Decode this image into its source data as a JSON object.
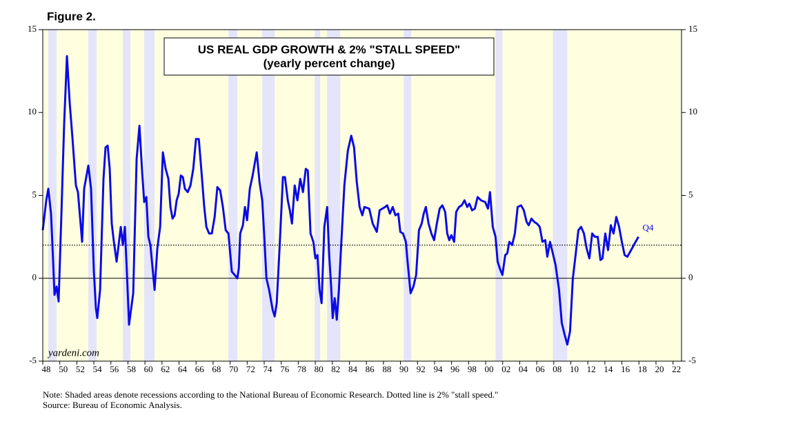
{
  "chart_data": {
    "type": "line",
    "figure_label": "Figure 2.",
    "title": "US REAL GDP GROWTH & 2% \"STALL SPEED\"",
    "subtitle": "(yearly percent change)",
    "watermark": "yardeni.com",
    "note": "Note: Shaded areas denote recessions according to the National Bureau of Economic Research. Dotted line is 2% \"stall speed.\"",
    "source": "Source: Bureau of Economic Analysis.",
    "annotation": "Q4",
    "color": "#0a0ae6",
    "background_color": "#ffffe0",
    "recession_color": "#e4e4fa",
    "stall_speed": 2,
    "zero_line": true,
    "xlim": [
      1948,
      2023
    ],
    "ylim": [
      -5,
      15
    ],
    "yticks": [
      -5,
      0,
      5,
      10,
      15
    ],
    "xticks": [
      {
        "value": 1948,
        "label": "48"
      },
      {
        "value": 1950,
        "label": "50"
      },
      {
        "value": 1952,
        "label": "52"
      },
      {
        "value": 1954,
        "label": "54"
      },
      {
        "value": 1956,
        "label": "56"
      },
      {
        "value": 1958,
        "label": "58"
      },
      {
        "value": 1960,
        "label": "60"
      },
      {
        "value": 1962,
        "label": "62"
      },
      {
        "value": 1964,
        "label": "64"
      },
      {
        "value": 1966,
        "label": "66"
      },
      {
        "value": 1968,
        "label": "68"
      },
      {
        "value": 1970,
        "label": "70"
      },
      {
        "value": 1972,
        "label": "72"
      },
      {
        "value": 1974,
        "label": "74"
      },
      {
        "value": 1976,
        "label": "76"
      },
      {
        "value": 1978,
        "label": "78"
      },
      {
        "value": 1980,
        "label": "80"
      },
      {
        "value": 1982,
        "label": "82"
      },
      {
        "value": 1984,
        "label": "84"
      },
      {
        "value": 1986,
        "label": "86"
      },
      {
        "value": 1988,
        "label": "88"
      },
      {
        "value": 1990,
        "label": "90"
      },
      {
        "value": 1992,
        "label": "92"
      },
      {
        "value": 1994,
        "label": "94"
      },
      {
        "value": 1996,
        "label": "96"
      },
      {
        "value": 1998,
        "label": "98"
      },
      {
        "value": 2000,
        "label": "00"
      },
      {
        "value": 2002,
        "label": "02"
      },
      {
        "value": 2004,
        "label": "04"
      },
      {
        "value": 2006,
        "label": "06"
      },
      {
        "value": 2008,
        "label": "08"
      },
      {
        "value": 2010,
        "label": "10"
      },
      {
        "value": 2012,
        "label": "12"
      },
      {
        "value": 2014,
        "label": "14"
      },
      {
        "value": 2016,
        "label": "16"
      },
      {
        "value": 2018,
        "label": "18"
      },
      {
        "value": 2020,
        "label": "20"
      },
      {
        "value": 2022,
        "label": "22"
      }
    ],
    "recessions": [
      [
        1948.65,
        1949.62
      ],
      [
        1953.35,
        1954.32
      ],
      [
        1957.4,
        1958.29
      ],
      [
        1959.91,
        1961.13
      ],
      [
        1969.8,
        1970.85
      ],
      [
        1973.77,
        1975.23
      ],
      [
        1979.93,
        1980.58
      ],
      [
        1981.39,
        1982.93
      ],
      [
        1990.38,
        1991.27
      ],
      [
        2001.16,
        2001.97
      ],
      [
        2007.89,
        2009.59
      ]
    ],
    "x": [
      1948.0,
      1948.41,
      1948.65,
      1948.97,
      1949.22,
      1949.38,
      1949.62,
      1949.86,
      1950.19,
      1950.51,
      1950.84,
      1951.16,
      1951.48,
      1951.89,
      1952.13,
      1952.62,
      1952.86,
      1953.35,
      1953.67,
      1954.0,
      1954.24,
      1954.4,
      1954.73,
      1955.13,
      1955.37,
      1955.62,
      1955.86,
      1956.1,
      1956.35,
      1956.67,
      1957.16,
      1957.4,
      1957.64,
      1957.89,
      1958.13,
      1958.62,
      1959.02,
      1959.35,
      1959.67,
      1959.91,
      1960.16,
      1960.4,
      1960.64,
      1961.13,
      1961.45,
      1961.78,
      1962.1,
      1962.43,
      1962.75,
      1962.99,
      1963.24,
      1963.48,
      1963.72,
      1963.96,
      1964.21,
      1964.45,
      1964.69,
      1965.02,
      1965.34,
      1965.67,
      1965.99,
      1966.32,
      1966.64,
      1966.96,
      1967.21,
      1967.53,
      1967.85,
      1968.18,
      1968.5,
      1968.83,
      1969.15,
      1969.48,
      1969.8,
      1970.2,
      1970.53,
      1970.85,
      1971.02,
      1971.18,
      1971.5,
      1971.74,
      1971.99,
      1972.31,
      1972.64,
      1973.12,
      1973.45,
      1973.77,
      1974.01,
      1974.26,
      1974.58,
      1974.99,
      1975.23,
      1975.47,
      1975.8,
      1976.2,
      1976.44,
      1976.77,
      1977.01,
      1977.26,
      1977.58,
      1977.9,
      1978.23,
      1978.55,
      1978.88,
      1979.12,
      1979.44,
      1979.77,
      1980.01,
      1980.25,
      1980.5,
      1980.74,
      1981.06,
      1981.39,
      1981.63,
      1981.87,
      1982.04,
      1982.28,
      1982.52,
      1982.77,
      1983.09,
      1983.41,
      1983.82,
      1984.22,
      1984.55,
      1984.87,
      1985.2,
      1985.52,
      1985.76,
      1986.33,
      1986.74,
      1987.22,
      1987.55,
      1987.87,
      1988.2,
      1988.44,
      1988.76,
      1989.09,
      1989.41,
      1989.74,
      1989.98,
      1990.3,
      1990.63,
      1990.87,
      1991.19,
      1991.52,
      1991.84,
      1992.17,
      1992.49,
      1992.73,
      1992.98,
      1993.3,
      1993.63,
      1993.95,
      1994.27,
      1994.6,
      1994.92,
      1995.25,
      1995.49,
      1995.73,
      1995.98,
      1996.3,
      1996.54,
      1996.87,
      1997.19,
      1997.52,
      1997.84,
      1998.08,
      1998.41,
      1998.73,
      1999.06,
      1999.46,
      1999.95,
      2000.27,
      2000.51,
      2000.84,
      2001.16,
      2001.41,
      2001.73,
      2001.97,
      2002.3,
      2002.54,
      2002.78,
      2003.11,
      2003.43,
      2003.76,
      2004.16,
      2004.48,
      2004.81,
      2005.05,
      2005.38,
      2005.7,
      2006.02,
      2006.35,
      2006.67,
      2007.0,
      2007.24,
      2007.56,
      2007.89,
      2008.21,
      2008.62,
      2008.94,
      2009.27,
      2009.59,
      2009.91,
      2010.24,
      2010.56,
      2010.89,
      2011.21,
      2011.54,
      2011.86,
      2012.18,
      2012.51,
      2012.83,
      2013.16,
      2013.48,
      2013.72,
      2014.05,
      2014.37,
      2014.7,
      2015.02,
      2015.34,
      2015.67,
      2015.99,
      2016.32,
      2016.64,
      2016.97,
      2017.29,
      2017.61,
      2017.94
    ],
    "values": [
      2.9,
      4.7,
      5.4,
      3.9,
      1.0,
      -1.0,
      -0.5,
      -1.4,
      3.9,
      9.3,
      13.4,
      10.6,
      8.5,
      5.6,
      5.2,
      2.2,
      5.4,
      6.8,
      5.4,
      0.4,
      -1.8,
      -2.4,
      -0.7,
      6.0,
      7.9,
      8.0,
      6.6,
      3.3,
      2.2,
      1.0,
      3.1,
      2.0,
      3.1,
      0.2,
      -2.8,
      -0.9,
      7.2,
      9.2,
      6.4,
      4.6,
      4.9,
      2.5,
      2.0,
      -0.7,
      1.8,
      3.1,
      7.6,
      6.6,
      6.0,
      4.3,
      3.6,
      3.8,
      4.7,
      5.1,
      6.2,
      6.1,
      5.4,
      5.2,
      5.6,
      6.6,
      8.4,
      8.4,
      6.4,
      4.3,
      3.1,
      2.7,
      2.7,
      3.7,
      5.5,
      5.3,
      4.3,
      2.9,
      2.7,
      0.4,
      0.2,
      0.0,
      0.6,
      2.7,
      3.2,
      4.3,
      3.5,
      5.4,
      6.2,
      7.6,
      5.8,
      4.7,
      2.5,
      0.0,
      -0.7,
      -1.9,
      -2.3,
      -1.5,
      1.8,
      6.1,
      6.1,
      4.7,
      4.1,
      3.3,
      5.6,
      4.7,
      6.0,
      5.2,
      6.6,
      6.5,
      2.7,
      2.2,
      1.2,
      1.4,
      -0.7,
      -1.5,
      3.1,
      4.3,
      1.4,
      -0.6,
      -2.4,
      -1.2,
      -2.5,
      -0.7,
      2.5,
      5.6,
      7.7,
      8.6,
      7.9,
      5.8,
      4.3,
      3.8,
      4.3,
      4.2,
      3.3,
      2.8,
      4.1,
      4.2,
      4.3,
      4.4,
      3.9,
      4.3,
      3.8,
      3.9,
      2.8,
      2.7,
      2.2,
      0.8,
      -0.9,
      -0.5,
      0.2,
      2.9,
      3.3,
      3.9,
      4.3,
      3.3,
      2.7,
      2.3,
      3.3,
      4.2,
      4.4,
      4.0,
      2.7,
      2.3,
      2.6,
      2.2,
      4.0,
      4.3,
      4.4,
      4.7,
      4.3,
      4.5,
      4.1,
      4.2,
      4.9,
      4.7,
      4.6,
      4.2,
      5.2,
      3.1,
      2.5,
      1.0,
      0.5,
      0.2,
      1.4,
      1.5,
      2.2,
      2.0,
      2.7,
      4.3,
      4.4,
      4.1,
      3.4,
      3.2,
      3.6,
      3.4,
      3.3,
      3.1,
      2.2,
      2.3,
      1.3,
      2.2,
      1.5,
      0.8,
      -0.7,
      -2.7,
      -3.4,
      -4.0,
      -3.2,
      0.0,
      1.4,
      2.9,
      3.1,
      2.7,
      1.8,
      1.2,
      2.7,
      2.5,
      2.5,
      1.1,
      1.2,
      2.7,
      1.7,
      3.2,
      2.7,
      3.7,
      3.1,
      2.2,
      1.4,
      1.3,
      1.6,
      1.9,
      2.2,
      2.5
    ]
  }
}
